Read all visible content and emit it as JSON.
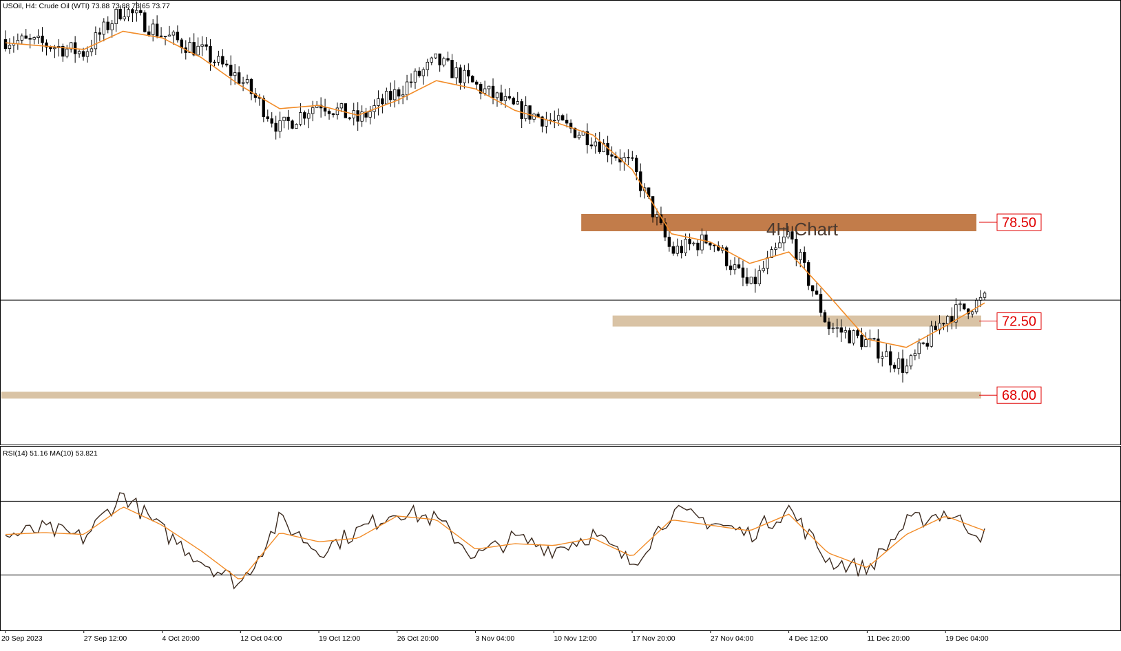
{
  "header": {
    "symbol_line": "USOil, H4:  Crude Oil (WTI)  73.88 73.88 73.65 73.77"
  },
  "annotation": {
    "chart_label": "4H Chart"
  },
  "levels": [
    {
      "label": "78.50",
      "value": 78.5
    },
    {
      "label": "72.50",
      "value": 72.5
    },
    {
      "label": "68.00",
      "value": 68.0
    }
  ],
  "current_price": 73.77,
  "colors": {
    "candle_body": "#000000",
    "moving_average": "#f28c28",
    "rsi_line": "#3b2a1f",
    "rsi_ma": "#f28c28",
    "resistance_zone": "#c27c4a",
    "support_zone": "#d9c3a5",
    "level_label": "#e00000"
  },
  "rsi_panel": {
    "label": "RSI(14) 51.16 MA(10) 53.821",
    "upper_level": 70,
    "lower_level": 30
  },
  "chart_data": {
    "type": "line",
    "title": "",
    "x_tick_labels": [
      "20 Sep 2023",
      "27 Sep 12:00",
      "4 Oct 20:00",
      "12 Oct 04:00",
      "19 Oct 12:00",
      "26 Oct 20:00",
      "3 Nov 04:00",
      "10 Nov 12:00",
      "17 Nov 20:00",
      "27 Nov 04:00",
      "4 Dec 12:00",
      "11 Dec 20:00",
      "19 Dec 04:00"
    ],
    "price_ylim": [
      65.0,
      92.0
    ],
    "rsi_ylim": [
      0,
      100
    ],
    "grid": false,
    "series": [
      {
        "name": "Price",
        "x": [
          0,
          0.5,
          1,
          1.5,
          2,
          2.5,
          3,
          3.5,
          4,
          4.5,
          5,
          5.5,
          6,
          6.5,
          7,
          7.5,
          8,
          8.5,
          9,
          9.5,
          10,
          10.5,
          11,
          11.5,
          12,
          12.5
        ],
        "values": [
          89.6,
          89.3,
          88.8,
          91.5,
          89.9,
          88.9,
          87.2,
          84.2,
          85.8,
          84.7,
          86.4,
          88.3,
          86.8,
          85.4,
          84.6,
          83.6,
          81.9,
          76.7,
          77.5,
          74.5,
          77.8,
          72.2,
          71.2,
          69.6,
          72.8,
          73.8
        ]
      },
      {
        "name": "MA",
        "x": [
          0,
          0.5,
          1,
          1.5,
          2,
          2.5,
          3,
          3.5,
          4,
          4.5,
          5,
          5.5,
          6,
          6.5,
          7,
          7.5,
          8,
          8.5,
          9,
          9.5,
          10,
          10.5,
          11,
          11.5,
          12,
          12.5
        ],
        "values": [
          89.4,
          89.2,
          89.0,
          90.1,
          89.7,
          88.5,
          86.8,
          85.4,
          85.6,
          85.0,
          85.9,
          87.1,
          86.6,
          85.3,
          84.6,
          83.8,
          81.7,
          77.8,
          77.3,
          76.0,
          76.7,
          74.1,
          71.4,
          70.9,
          72.2,
          73.6
        ]
      },
      {
        "name": "RSI",
        "x": [
          0,
          0.5,
          1,
          1.5,
          2,
          2.5,
          3,
          3.5,
          4,
          4.5,
          5,
          5.5,
          6,
          6.5,
          7,
          7.5,
          8,
          8.5,
          9,
          9.5,
          10,
          10.5,
          11,
          11.5,
          12,
          12.5
        ],
        "values": [
          51,
          55,
          50,
          74,
          54,
          38,
          25,
          60,
          43,
          54,
          65,
          60,
          40,
          50,
          44,
          52,
          36,
          64,
          59,
          52,
          66,
          38,
          33,
          58,
          64,
          51
        ]
      },
      {
        "name": "RSI MA",
        "x": [
          0,
          0.5,
          1,
          1.5,
          2,
          2.5,
          3,
          3.5,
          4,
          4.5,
          5,
          5.5,
          6,
          6.5,
          7,
          7.5,
          8,
          8.5,
          9,
          9.5,
          10,
          10.5,
          11,
          11.5,
          12,
          12.5
        ],
        "values": [
          52,
          53,
          52,
          67,
          57,
          43,
          27,
          53,
          48,
          50,
          62,
          60,
          44,
          47,
          46,
          50,
          40,
          60,
          57,
          54,
          63,
          42,
          34,
          52,
          62,
          54
        ]
      }
    ]
  }
}
